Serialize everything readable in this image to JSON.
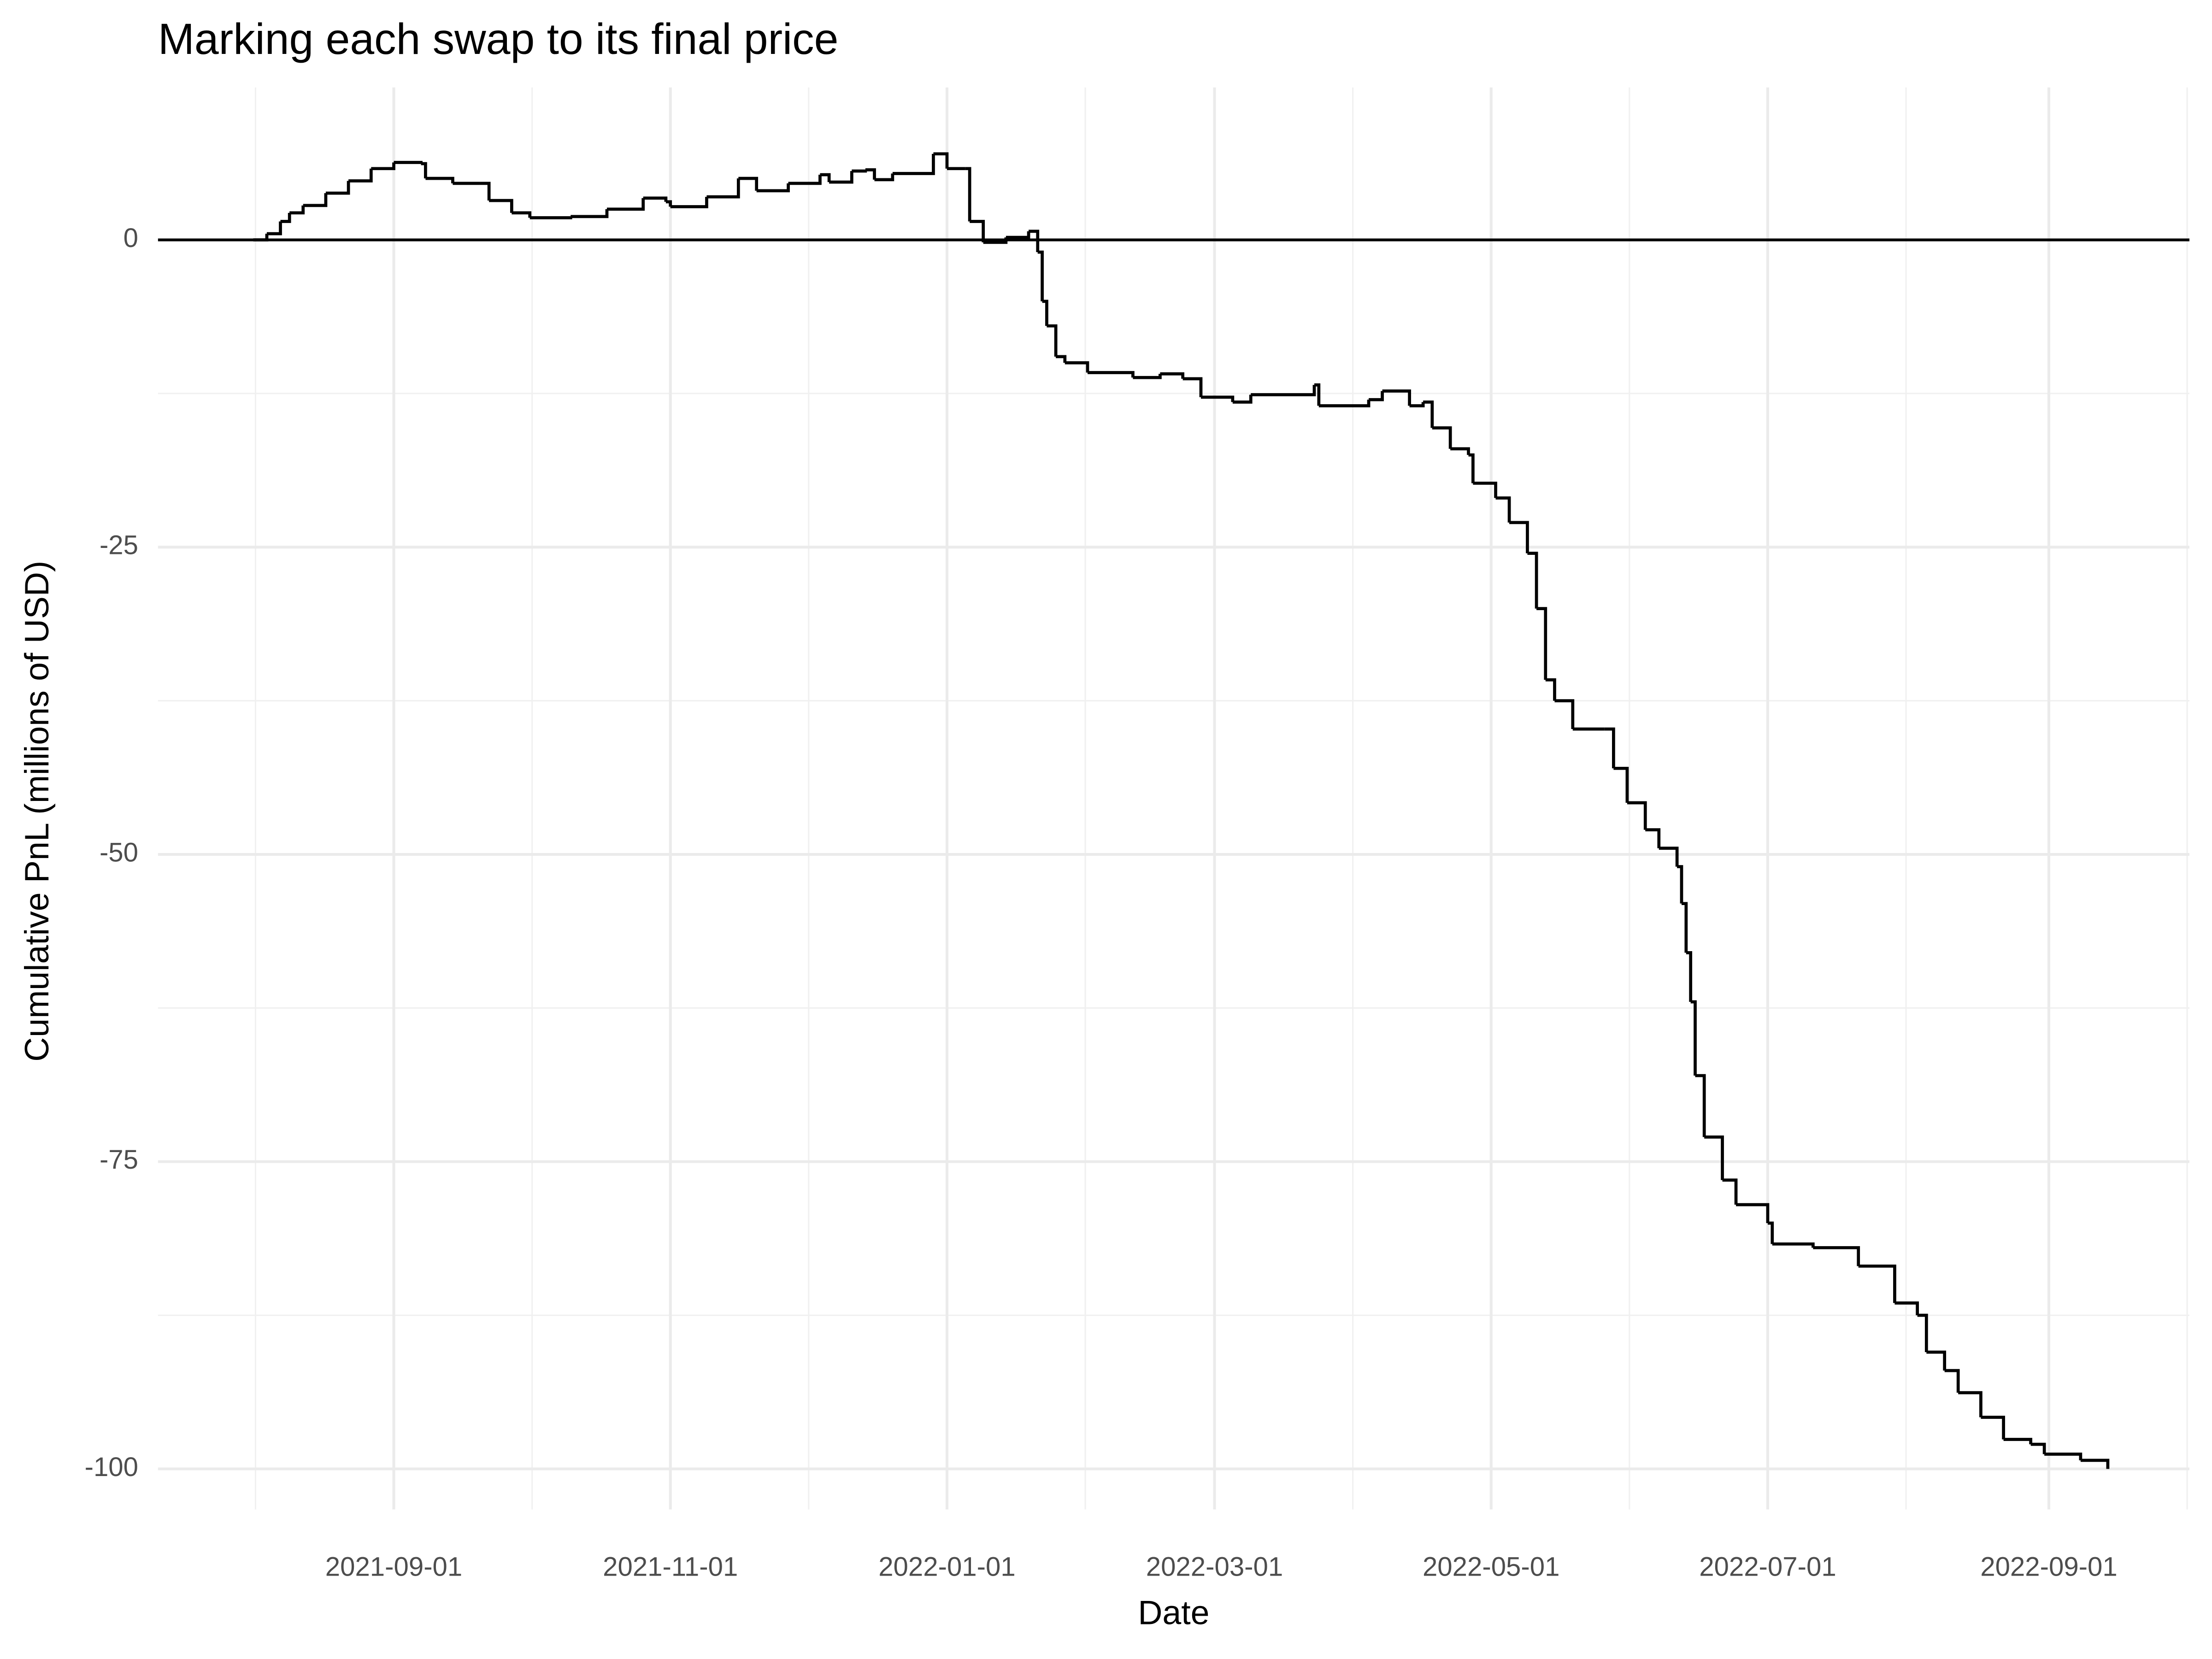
{
  "chart_data": {
    "type": "line",
    "step": "hv",
    "title": "Marking each swap to its final price",
    "x_label": "Date",
    "y_label": "Cumulative PnL (millions of USD)",
    "x": [
      "2021-08-01",
      "2021-08-04",
      "2021-08-07",
      "2021-08-09",
      "2021-08-12",
      "2021-08-17",
      "2021-08-22",
      "2021-08-27",
      "2021-09-01",
      "2021-09-07",
      "2021-09-08",
      "2021-09-14",
      "2021-09-20",
      "2021-09-22",
      "2021-09-27",
      "2021-10-01",
      "2021-10-10",
      "2021-10-18",
      "2021-10-26",
      "2021-10-31",
      "2021-11-01",
      "2021-11-09",
      "2021-11-16",
      "2021-11-20",
      "2021-11-27",
      "2021-12-04",
      "2021-12-06",
      "2021-12-11",
      "2021-12-14",
      "2021-12-16",
      "2021-12-20",
      "2021-12-29",
      "2022-01-01",
      "2022-01-05",
      "2022-01-06",
      "2022-01-09",
      "2022-01-14",
      "2022-01-19",
      "2022-01-21",
      "2022-01-22",
      "2022-01-23",
      "2022-01-25",
      "2022-01-27",
      "2022-02-01",
      "2022-02-11",
      "2022-02-17",
      "2022-02-22",
      "2022-02-26",
      "2022-03-05",
      "2022-03-09",
      "2022-03-23",
      "2022-03-24",
      "2022-04-04",
      "2022-04-07",
      "2022-04-13",
      "2022-04-16",
      "2022-04-18",
      "2022-04-22",
      "2022-04-26",
      "2022-04-27",
      "2022-05-02",
      "2022-05-05",
      "2022-05-09",
      "2022-05-11",
      "2022-05-13",
      "2022-05-15",
      "2022-05-19",
      "2022-05-26",
      "2022-05-28",
      "2022-05-31",
      "2022-06-04",
      "2022-06-07",
      "2022-06-11",
      "2022-06-12",
      "2022-06-13",
      "2022-06-14",
      "2022-06-15",
      "2022-06-17",
      "2022-06-21",
      "2022-06-24",
      "2022-07-01",
      "2022-07-02",
      "2022-07-11",
      "2022-07-21",
      "2022-07-29",
      "2022-08-03",
      "2022-08-05",
      "2022-08-09",
      "2022-08-12",
      "2022-08-17",
      "2022-08-22",
      "2022-08-28",
      "2022-08-31",
      "2022-09-08",
      "2022-09-14"
    ],
    "series": [
      {
        "name": "Cumulative PnL",
        "color": "#000000",
        "values": [
          0,
          0.5,
          1.5,
          2.2,
          2.8,
          3.8,
          4.8,
          5.8,
          6.3,
          6.2,
          5.0,
          4.6,
          4.6,
          3.2,
          2.2,
          1.8,
          1.9,
          2.5,
          3.4,
          3.1,
          2.7,
          3.5,
          5.0,
          4.0,
          4.6,
          5.3,
          4.7,
          5.6,
          5.7,
          4.9,
          5.4,
          7.0,
          5.8,
          5.8,
          1.5,
          -0.2,
          0.2,
          0.7,
          -1.0,
          -5,
          -7,
          -9.5,
          -10,
          -10.8,
          -11.2,
          -10.9,
          -11.3,
          -12.8,
          -13.2,
          -12.6,
          -11.8,
          -13.5,
          -13.0,
          -12.3,
          -13.5,
          -13.2,
          -15.3,
          -17,
          -17.5,
          -19.8,
          -21,
          -23,
          -25.5,
          -30,
          -35.8,
          -37.5,
          -39.8,
          -39.8,
          -43,
          -45.8,
          -48,
          -49.5,
          -51,
          -54,
          -58,
          -62,
          -68,
          -73,
          -76.5,
          -78.5,
          -80,
          -81.7,
          -82,
          -83.5,
          -86.5,
          -87.5,
          -90.5,
          -92,
          -93.8,
          -95.8,
          -97.6,
          -98,
          -98.8,
          -99.3,
          -100
        ]
      }
    ],
    "hline": 0,
    "xlim": [
      "2021-07-11",
      "2022-10-02"
    ],
    "xticks": [
      "2021-09-01",
      "2021-11-01",
      "2022-01-01",
      "2022-03-01",
      "2022-05-01",
      "2022-07-01",
      "2022-09-01"
    ],
    "ylim": [
      -103.3,
      12.4
    ],
    "yticks": [
      0,
      -25,
      -50,
      -75,
      -100
    ],
    "grid": true
  }
}
